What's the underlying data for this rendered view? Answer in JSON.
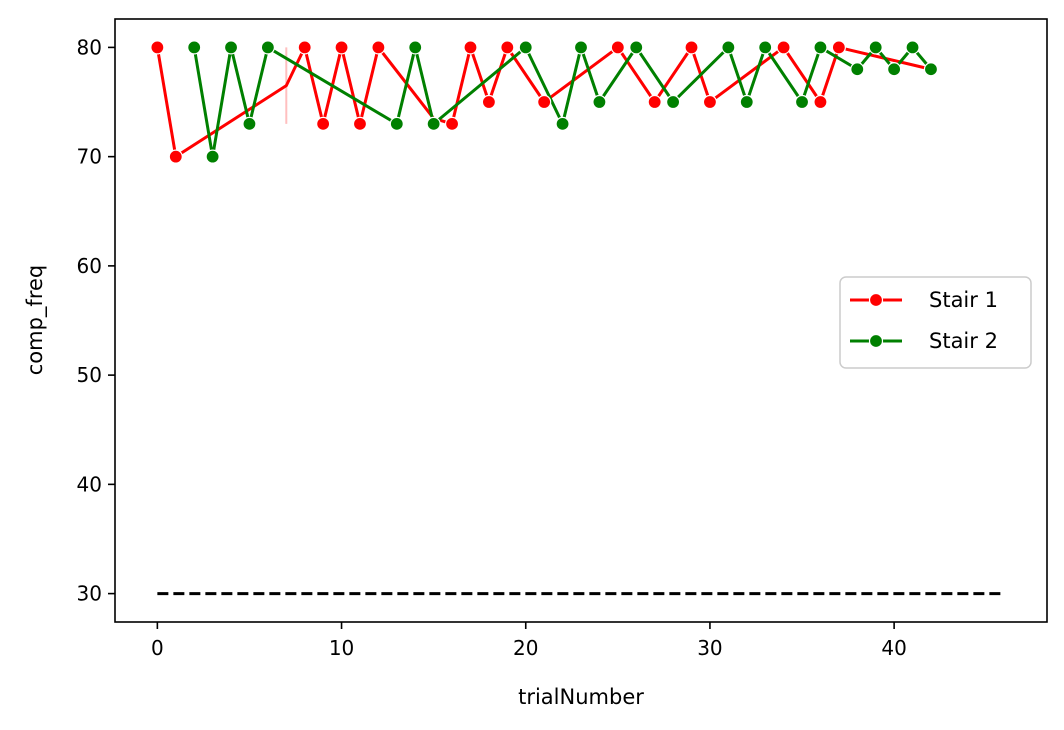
{
  "chart_data": {
    "type": "line",
    "xlabel": "trialNumber",
    "ylabel": "comp_freq",
    "xlim": [
      -2.3,
      48.3
    ],
    "ylim": [
      27.4,
      82.6
    ],
    "x_ticks": [
      0,
      10,
      20,
      30,
      40
    ],
    "y_ticks": [
      30,
      40,
      50,
      60,
      70,
      80
    ],
    "grid": false,
    "legend_position": "center-right",
    "series": [
      {
        "name": "Stair 1",
        "color": "#ff0000",
        "x": [
          0,
          1,
          7,
          8,
          9,
          10,
          11,
          12,
          15,
          16,
          17,
          18,
          19,
          21,
          25,
          27,
          29,
          30,
          34,
          36,
          37,
          42
        ],
        "y": [
          80,
          70,
          76.5,
          80,
          73,
          80,
          73,
          80,
          73.5,
          73,
          80,
          75,
          80,
          75,
          80,
          75,
          80,
          75,
          80,
          75,
          80,
          78
        ],
        "markers": [
          true,
          true,
          false,
          true,
          true,
          true,
          true,
          true,
          false,
          true,
          true,
          true,
          true,
          true,
          true,
          true,
          true,
          true,
          true,
          true,
          true,
          false
        ],
        "error_bar": {
          "x": 7,
          "low": 73,
          "high": 80
        }
      },
      {
        "name": "Stair 2",
        "color": "#008000",
        "x": [
          2,
          3,
          4,
          5,
          6,
          13,
          14,
          15,
          20,
          22,
          23,
          24,
          26,
          28,
          31,
          32,
          33,
          35,
          36,
          38,
          39,
          40,
          41,
          42
        ],
        "y": [
          80,
          70,
          80,
          73,
          80,
          73,
          80,
          73,
          80,
          73,
          80,
          75,
          80,
          75,
          80,
          75,
          80,
          75,
          80,
          78,
          80,
          78,
          80,
          78
        ],
        "markers": [
          true,
          true,
          true,
          true,
          true,
          true,
          true,
          true,
          true,
          true,
          true,
          true,
          true,
          true,
          true,
          true,
          true,
          true,
          true,
          true,
          true,
          true,
          true,
          true
        ]
      }
    ],
    "reference_line": {
      "y": 30,
      "x_start": 0,
      "x_end": 46,
      "color": "#000000",
      "style": "dashed"
    }
  }
}
